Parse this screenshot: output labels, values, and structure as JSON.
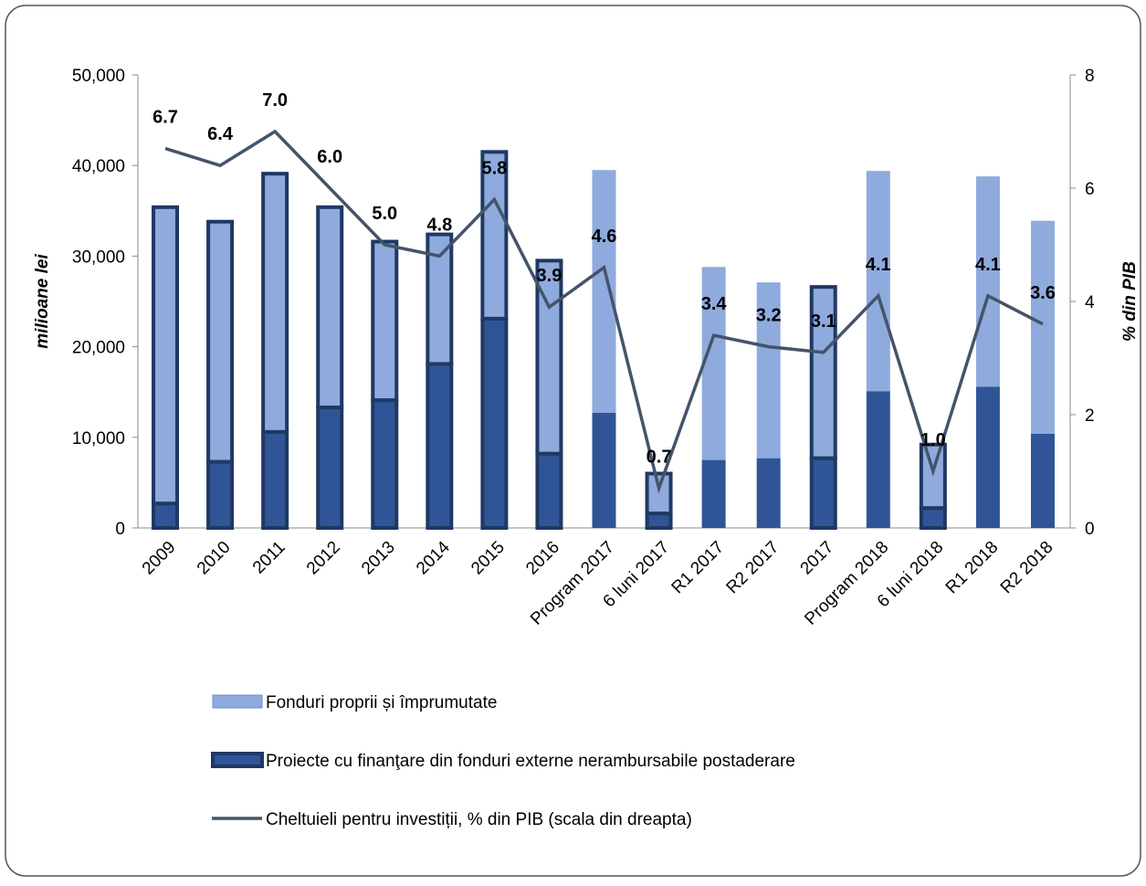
{
  "chart_data": {
    "type": "bar",
    "categories": [
      "2009",
      "2010",
      "2011",
      "2012",
      "2013",
      "2014",
      "2015",
      "2016",
      "Program 2017",
      "6 luni 2017",
      "R1 2017",
      "R2 2017",
      "2017",
      "Program 2018",
      "6 luni 2018",
      "R1 2018",
      "R2 2018"
    ],
    "outline": [
      true,
      true,
      true,
      true,
      true,
      true,
      true,
      true,
      false,
      true,
      false,
      false,
      true,
      false,
      true,
      false,
      false
    ],
    "series": [
      {
        "name": "Proiecte cu finanţare din fonduri externe nerambursabile postaderare",
        "color": "#2f5597",
        "stack": true,
        "values": [
          2700,
          7300,
          10600,
          13300,
          14100,
          18100,
          23100,
          8200,
          12700,
          1600,
          7500,
          7700,
          7700,
          15100,
          2200,
          15600,
          10400
        ]
      },
      {
        "name": "Fonduri proprii și împrumutate",
        "color": "#8faadc",
        "stack": true,
        "values": [
          32700,
          26500,
          28500,
          22100,
          17500,
          14300,
          18400,
          21300,
          26800,
          4400,
          21300,
          19400,
          18900,
          24300,
          7000,
          23200,
          23500
        ]
      },
      {
        "name": "Cheltuieli pentru investiții, % din PIB (scala din dreapta)",
        "color": "#44546a",
        "type": "line",
        "axis": "y2",
        "values": [
          6.7,
          6.4,
          7.0,
          6.0,
          5.0,
          4.8,
          5.8,
          3.9,
          4.6,
          0.7,
          3.4,
          3.2,
          3.1,
          4.1,
          1.0,
          4.1,
          3.6
        ],
        "value_labels": [
          "6.7",
          "6.4",
          "7.0",
          "6.0",
          "5.0",
          "4.8",
          "5.8",
          "3.9",
          "4.6",
          "0.7",
          "3.4",
          "3.2",
          "3.1",
          "4.1",
          "1.0",
          "4.1",
          "3.6"
        ]
      }
    ],
    "y_label": "milioane lei",
    "y2_label": "% din PIB",
    "ylim": [
      0,
      50000
    ],
    "yticks": [
      0,
      {
        "value": 10000,
        "label": "10,000"
      },
      {
        "value": 20000,
        "label": "20,000"
      },
      {
        "value": 30000,
        "label": "30,000"
      },
      {
        "value": 40000,
        "label": "40,000"
      },
      {
        "value": 50000,
        "label": "50,000"
      }
    ],
    "y2lim": [
      0,
      8
    ],
    "y2ticks": [
      0,
      2,
      4,
      6,
      8
    ]
  }
}
